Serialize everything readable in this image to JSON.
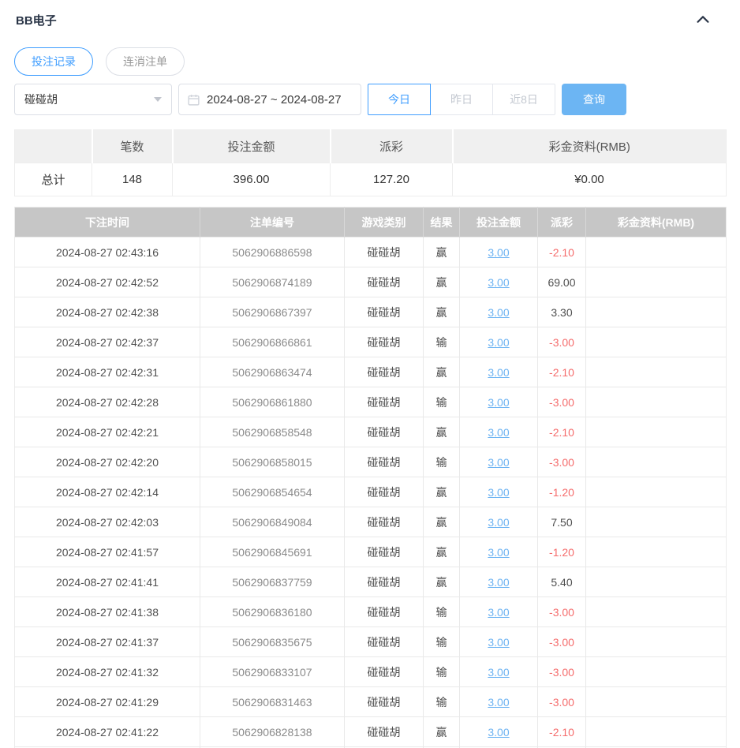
{
  "header": {
    "title": "BB电子"
  },
  "tabs": [
    {
      "label": "投注记录",
      "active": true
    },
    {
      "label": "连消注单",
      "active": false
    }
  ],
  "filters": {
    "game_select": {
      "value": "碰碰胡"
    },
    "date_range": {
      "value": "2024-08-27 ~ 2024-08-27"
    },
    "quick_ranges": [
      {
        "label": "今日",
        "active": true
      },
      {
        "label": "昨日",
        "active": false
      },
      {
        "label": "近8日",
        "active": false
      }
    ],
    "search_button": "查询"
  },
  "summary": {
    "headers": [
      "",
      "笔数",
      "投注金额",
      "派彩",
      "彩金资料(RMB)"
    ],
    "total_row": {
      "label": "总计",
      "count": "148",
      "bet_amount": "396.00",
      "payout": "127.20",
      "bonus": "¥0.00"
    }
  },
  "records": {
    "headers": [
      "下注时间",
      "注单编号",
      "游戏类别",
      "结果",
      "投注金额",
      "派彩",
      "彩金资料(RMB)"
    ],
    "rows": [
      {
        "time": "2024-08-27 02:43:16",
        "order_no": "5062906886598",
        "game": "碰碰胡",
        "result": "赢",
        "bet": "3.00",
        "payout": "-2.10",
        "bonus": ""
      },
      {
        "time": "2024-08-27 02:42:52",
        "order_no": "5062906874189",
        "game": "碰碰胡",
        "result": "赢",
        "bet": "3.00",
        "payout": "69.00",
        "bonus": ""
      },
      {
        "time": "2024-08-27 02:42:38",
        "order_no": "5062906867397",
        "game": "碰碰胡",
        "result": "赢",
        "bet": "3.00",
        "payout": "3.30",
        "bonus": ""
      },
      {
        "time": "2024-08-27 02:42:37",
        "order_no": "5062906866861",
        "game": "碰碰胡",
        "result": "输",
        "bet": "3.00",
        "payout": "-3.00",
        "bonus": ""
      },
      {
        "time": "2024-08-27 02:42:31",
        "order_no": "5062906863474",
        "game": "碰碰胡",
        "result": "赢",
        "bet": "3.00",
        "payout": "-2.10",
        "bonus": ""
      },
      {
        "time": "2024-08-27 02:42:28",
        "order_no": "5062906861880",
        "game": "碰碰胡",
        "result": "输",
        "bet": "3.00",
        "payout": "-3.00",
        "bonus": ""
      },
      {
        "time": "2024-08-27 02:42:21",
        "order_no": "5062906858548",
        "game": "碰碰胡",
        "result": "赢",
        "bet": "3.00",
        "payout": "-2.10",
        "bonus": ""
      },
      {
        "time": "2024-08-27 02:42:20",
        "order_no": "5062906858015",
        "game": "碰碰胡",
        "result": "输",
        "bet": "3.00",
        "payout": "-3.00",
        "bonus": ""
      },
      {
        "time": "2024-08-27 02:42:14",
        "order_no": "5062906854654",
        "game": "碰碰胡",
        "result": "赢",
        "bet": "3.00",
        "payout": "-1.20",
        "bonus": ""
      },
      {
        "time": "2024-08-27 02:42:03",
        "order_no": "5062906849084",
        "game": "碰碰胡",
        "result": "赢",
        "bet": "3.00",
        "payout": "7.50",
        "bonus": ""
      },
      {
        "time": "2024-08-27 02:41:57",
        "order_no": "5062906845691",
        "game": "碰碰胡",
        "result": "赢",
        "bet": "3.00",
        "payout": "-1.20",
        "bonus": ""
      },
      {
        "time": "2024-08-27 02:41:41",
        "order_no": "5062906837759",
        "game": "碰碰胡",
        "result": "赢",
        "bet": "3.00",
        "payout": "5.40",
        "bonus": ""
      },
      {
        "time": "2024-08-27 02:41:38",
        "order_no": "5062906836180",
        "game": "碰碰胡",
        "result": "输",
        "bet": "3.00",
        "payout": "-3.00",
        "bonus": ""
      },
      {
        "time": "2024-08-27 02:41:37",
        "order_no": "5062906835675",
        "game": "碰碰胡",
        "result": "输",
        "bet": "3.00",
        "payout": "-3.00",
        "bonus": ""
      },
      {
        "time": "2024-08-27 02:41:32",
        "order_no": "5062906833107",
        "game": "碰碰胡",
        "result": "输",
        "bet": "3.00",
        "payout": "-3.00",
        "bonus": ""
      },
      {
        "time": "2024-08-27 02:41:29",
        "order_no": "5062906831463",
        "game": "碰碰胡",
        "result": "输",
        "bet": "3.00",
        "payout": "-3.00",
        "bonus": ""
      },
      {
        "time": "2024-08-27 02:41:22",
        "order_no": "5062906828138",
        "game": "碰碰胡",
        "result": "赢",
        "bet": "3.00",
        "payout": "-2.10",
        "bonus": ""
      }
    ]
  },
  "colors": {
    "accent": "#409eff",
    "search_button_bg": "#6cb5f3",
    "negative": "#f56c6c",
    "link": "#6db3f2",
    "table_header_bg": "#c6c6c6"
  }
}
